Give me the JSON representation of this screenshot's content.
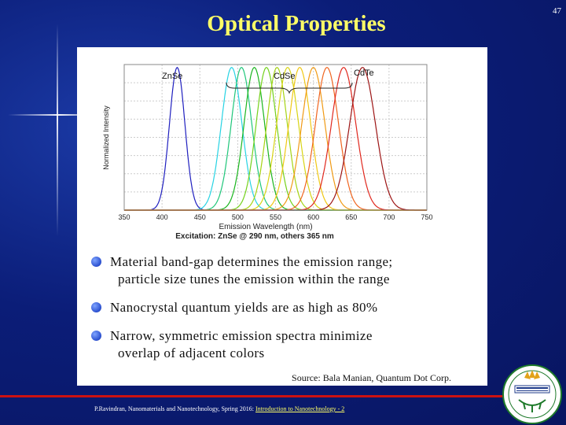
{
  "slide": {
    "title": "Optical Properties",
    "page_number": "47"
  },
  "chart_data": {
    "type": "line",
    "ylabel": "Normalized Intensity",
    "xlabel": "Emission Wavelength (nm)",
    "excitation_note": "Excitation: ZnSe @ 290 nm, others 365 nm",
    "xlim": [
      350,
      750
    ],
    "xticks": [
      350,
      400,
      450,
      500,
      550,
      600,
      650,
      700,
      750
    ],
    "ylim": [
      0,
      1
    ],
    "grid": true,
    "annotations": [
      "ZnSe",
      "CdSe",
      "CdTe"
    ],
    "series": [
      {
        "peak": 420,
        "fwhm": 24,
        "color": "#1f1fbf"
      },
      {
        "peak": 492,
        "fwhm": 32,
        "color": "#26d3e3"
      },
      {
        "peak": 505,
        "fwhm": 32,
        "color": "#1fc67a"
      },
      {
        "peak": 522,
        "fwhm": 32,
        "color": "#19b51d"
      },
      {
        "peak": 538,
        "fwhm": 32,
        "color": "#74d11b"
      },
      {
        "peak": 552,
        "fwhm": 32,
        "color": "#a6d414"
      },
      {
        "peak": 566,
        "fwhm": 34,
        "color": "#d8d414"
      },
      {
        "peak": 582,
        "fwhm": 34,
        "color": "#f0c814"
      },
      {
        "peak": 600,
        "fwhm": 36,
        "color": "#f09a14"
      },
      {
        "peak": 618,
        "fwhm": 36,
        "color": "#f0641e"
      },
      {
        "peak": 640,
        "fwhm": 38,
        "color": "#e0281e"
      },
      {
        "peak": 665,
        "fwhm": 40,
        "color": "#9c1414"
      }
    ]
  },
  "bullets": [
    {
      "line1": "Material band-gap determines the emission range;",
      "line2": "particle size tunes the emission within the range"
    },
    {
      "line1": "Nanocrystal quantum yields are as high as 80%",
      "line2": ""
    },
    {
      "line1": "Narrow, symmetric emission spectra minimize",
      "line2": "overlap of adjacent colors"
    }
  ],
  "source": "Source: Bala Manian, Quantum Dot Corp.",
  "footer": {
    "text": "P.Ravindran, Nanomaterials and Nanotechnology, Spring 2016: ",
    "link": "Introduction to Nanotechnology - 2"
  },
  "colors": {
    "background": "#0a1a6e",
    "title": "#ffff66",
    "footer_bar": "#cc1111"
  },
  "logo": {
    "icon": "university-seal-icon"
  }
}
